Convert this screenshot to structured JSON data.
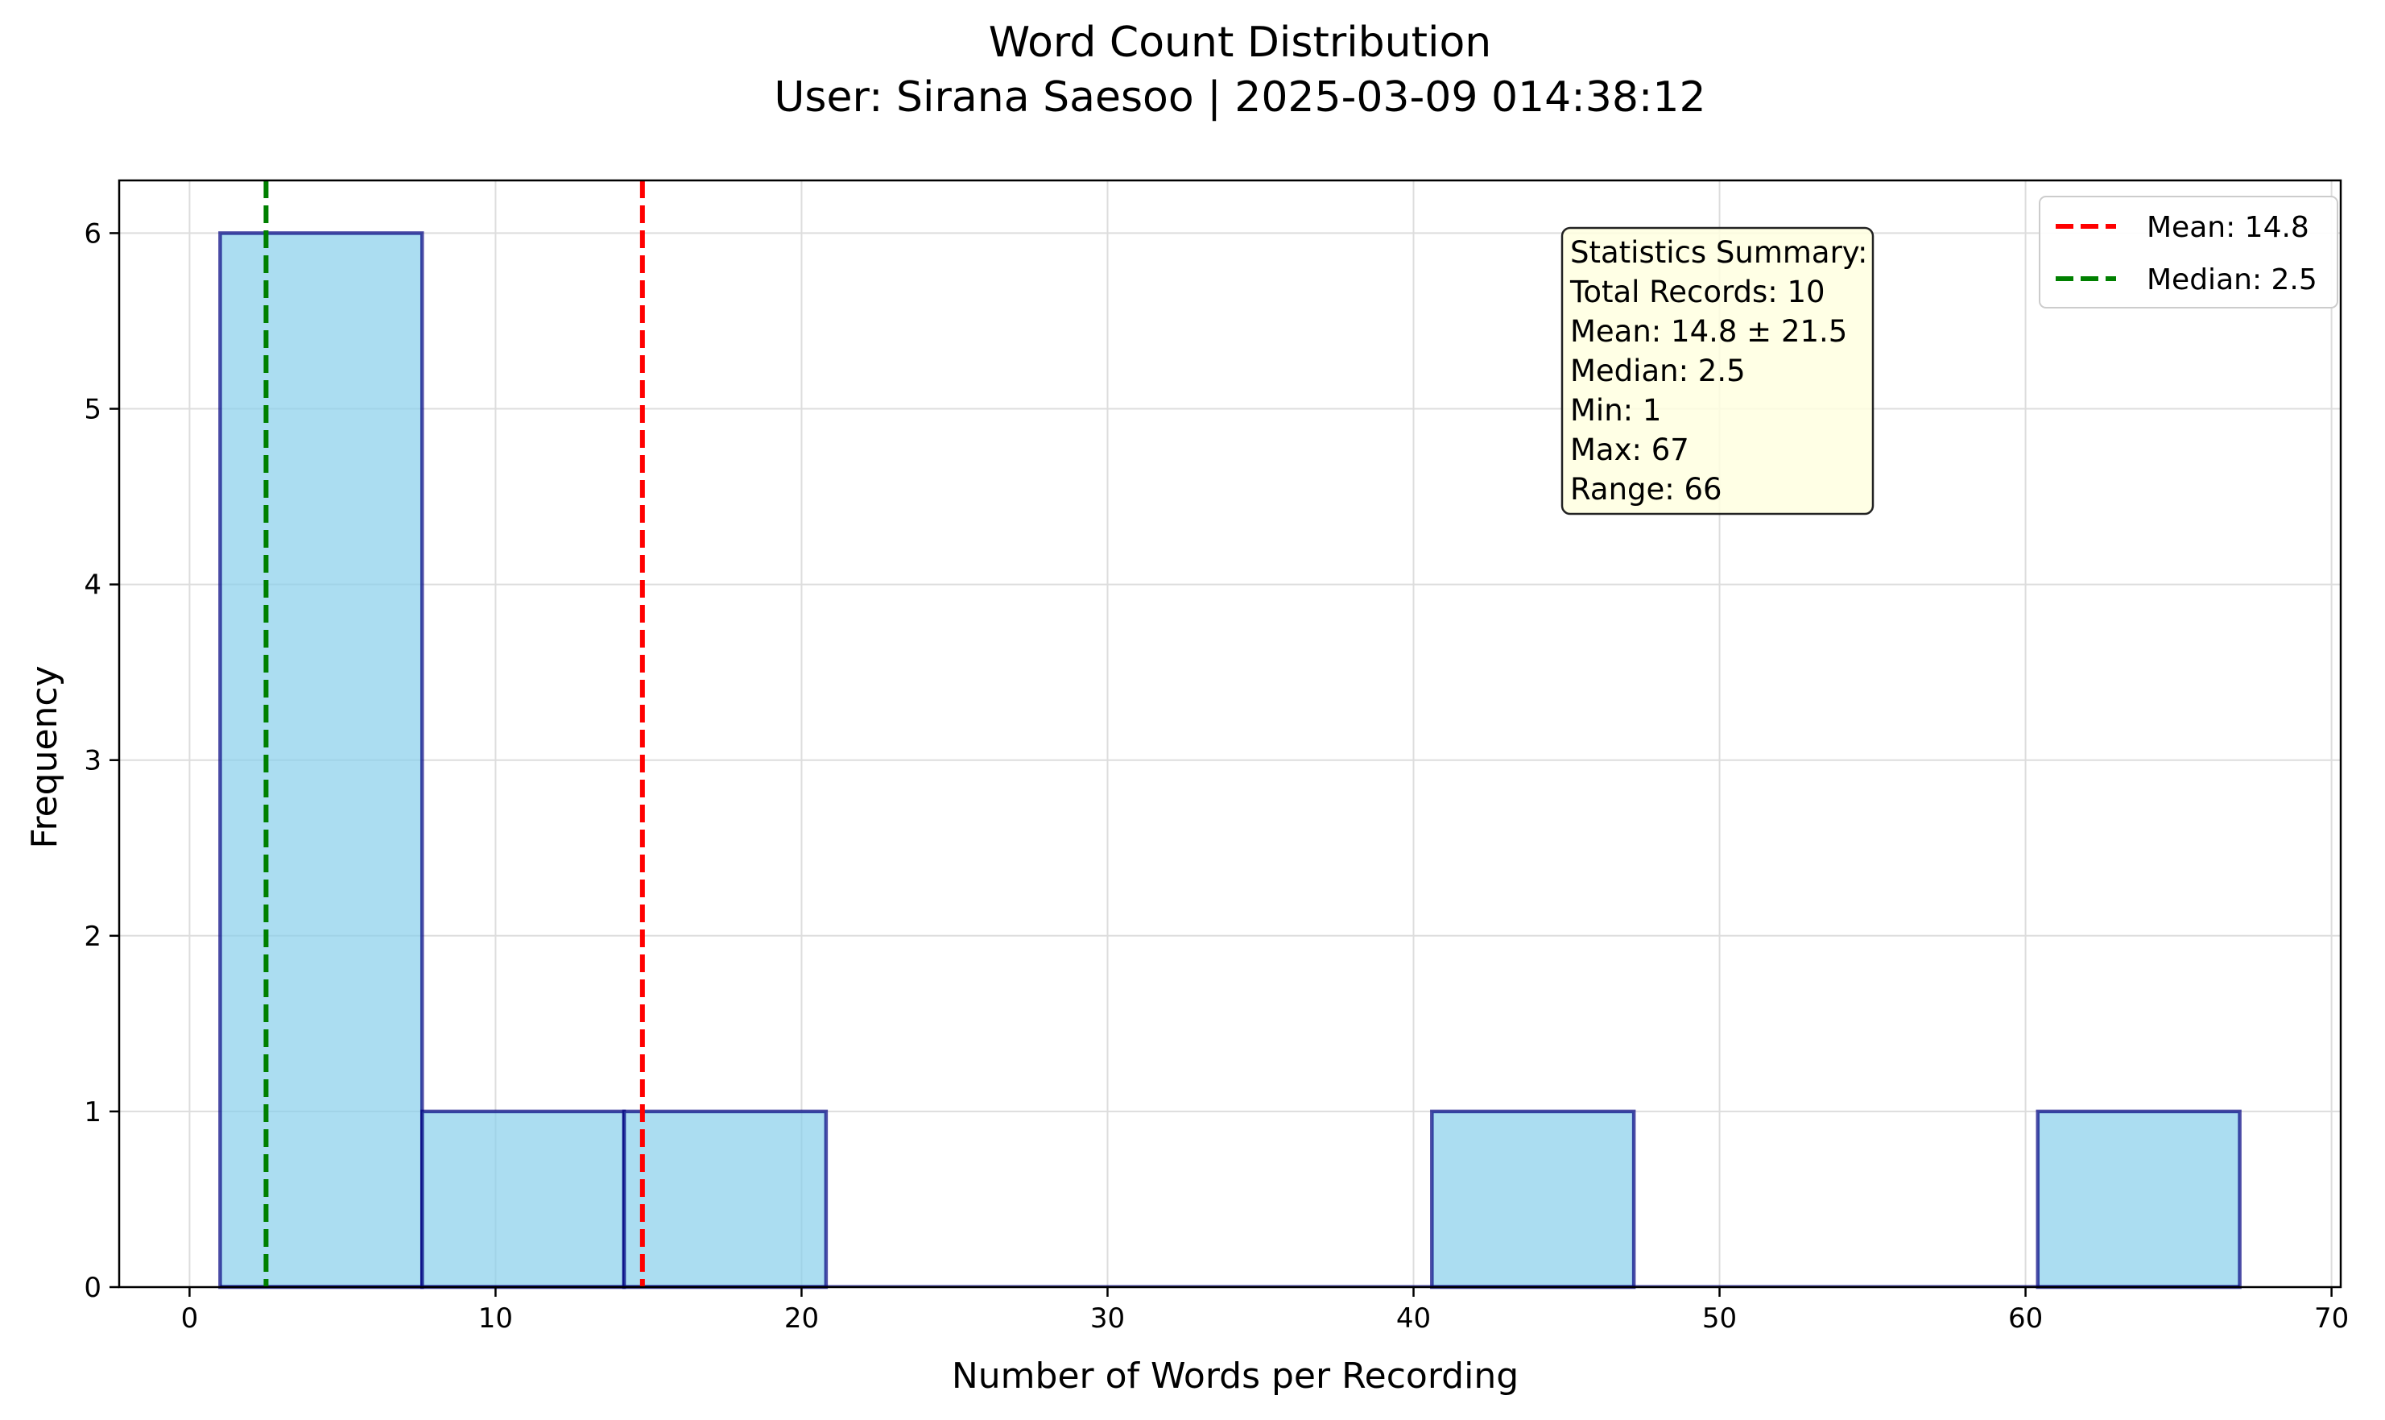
{
  "chart_data": {
    "type": "bar",
    "title": "Word Count Distribution",
    "subtitle": "User: Sirana Saesoo | 2025-03-09 014:38:12",
    "xlabel": "Number of Words per Recording",
    "ylabel": "Frequency",
    "xlim": [
      -2.3,
      70.3
    ],
    "ylim": [
      0,
      6.3
    ],
    "xticks": [
      0,
      10,
      20,
      30,
      40,
      50,
      60,
      70
    ],
    "yticks": [
      0,
      1,
      2,
      3,
      4,
      5,
      6
    ],
    "grid": true,
    "legend_position": "top-right",
    "bins": [
      {
        "start": 1.0,
        "end": 7.6,
        "count": 6
      },
      {
        "start": 7.6,
        "end": 14.2,
        "count": 1
      },
      {
        "start": 14.2,
        "end": 20.8,
        "count": 1
      },
      {
        "start": 20.8,
        "end": 27.4,
        "count": 0
      },
      {
        "start": 27.4,
        "end": 34.0,
        "count": 0
      },
      {
        "start": 34.0,
        "end": 40.6,
        "count": 0
      },
      {
        "start": 40.6,
        "end": 47.2,
        "count": 1
      },
      {
        "start": 47.2,
        "end": 53.8,
        "count": 0
      },
      {
        "start": 53.8,
        "end": 60.4,
        "count": 0
      },
      {
        "start": 60.4,
        "end": 67.0,
        "count": 1
      }
    ],
    "reference_lines": [
      {
        "name": "Mean: 14.8",
        "x": 14.8,
        "color": "#ff0000"
      },
      {
        "name": "Median: 2.5",
        "x": 2.5,
        "color": "#008000"
      }
    ],
    "stats_box": {
      "lines": [
        "Statistics Summary:",
        "Total Records: 10",
        "Mean: 14.8 ± 21.5",
        "Median: 2.5",
        "Min: 1",
        "Max: 67",
        "Range: 66"
      ]
    },
    "colors": {
      "bar_fill": "#87ceeb",
      "bar_edge": "#000080"
    }
  }
}
